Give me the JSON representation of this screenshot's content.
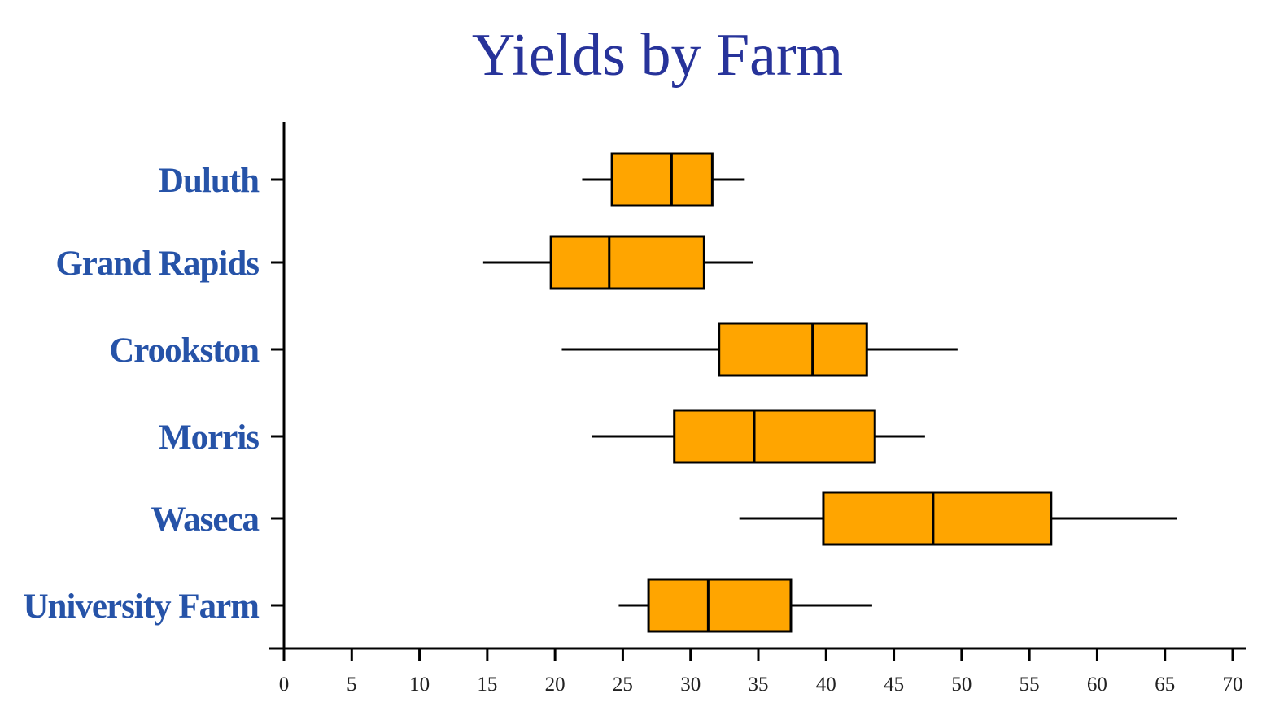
{
  "chart_data": {
    "type": "boxplot",
    "orientation": "horizontal",
    "title": "Yields by Farm",
    "xlabel": "",
    "ylabel": "",
    "xlim": [
      0,
      70
    ],
    "x_ticks": [
      0,
      5,
      10,
      15,
      20,
      25,
      30,
      35,
      40,
      45,
      50,
      55,
      60,
      65,
      70
    ],
    "x_tick_labels": [
      "0",
      "5",
      "10",
      "15",
      "20",
      "25",
      "30",
      "35",
      "40",
      "45",
      "50",
      "55",
      "60",
      "65",
      "70"
    ],
    "grid": false,
    "categories": [
      "Duluth",
      "Grand Rapids",
      "Crookston",
      "Morris",
      "Waseca",
      "University Farm"
    ],
    "box_color": "#ffa500",
    "series": [
      {
        "category": "Duluth",
        "min": 22.0,
        "q1": 24.2,
        "median": 28.6,
        "q3": 31.6,
        "max": 34.0
      },
      {
        "category": "Grand Rapids",
        "min": 14.7,
        "q1": 19.7,
        "median": 24.0,
        "q3": 31.0,
        "max": 34.6
      },
      {
        "category": "Crookston",
        "min": 20.5,
        "q1": 32.1,
        "median": 39.0,
        "q3": 43.0,
        "max": 49.7
      },
      {
        "category": "Morris",
        "min": 22.7,
        "q1": 28.8,
        "median": 34.7,
        "q3": 43.6,
        "max": 47.3
      },
      {
        "category": "Waseca",
        "min": 33.6,
        "q1": 39.8,
        "median": 47.9,
        "q3": 56.6,
        "max": 65.9
      },
      {
        "category": "University Farm",
        "min": 24.7,
        "q1": 26.9,
        "median": 31.3,
        "q3": 37.4,
        "max": 43.4
      }
    ]
  }
}
